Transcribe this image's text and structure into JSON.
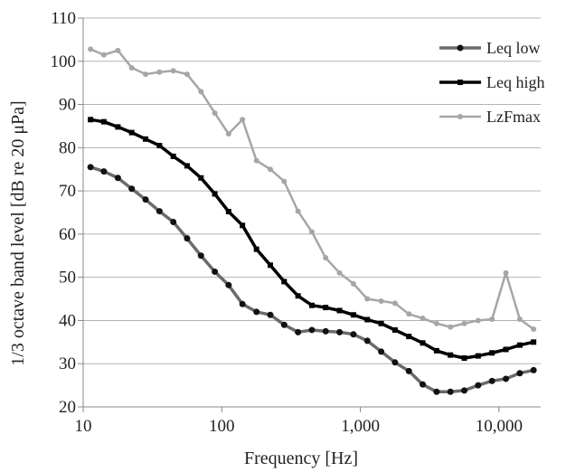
{
  "chart_data": {
    "type": "line",
    "xscale": "log",
    "xlabel": "Frequency [Hz]",
    "ylabel": "1/3 octave band level [dB re 20 μPa]",
    "xlim": [
      10,
      20000
    ],
    "ylim": [
      20,
      110
    ],
    "xticks": [
      10,
      100,
      1000,
      10000
    ],
    "xtick_labels": [
      "10",
      "100",
      "1,000",
      "10,000"
    ],
    "yticks": [
      20,
      30,
      40,
      50,
      60,
      70,
      80,
      90,
      100,
      110
    ],
    "ytick_labels": [
      "20",
      "30",
      "40",
      "50",
      "60",
      "70",
      "80",
      "90",
      "100",
      "110"
    ],
    "grid": "horizontal",
    "legend_position": "top-right",
    "x": [
      11.3,
      14.1,
      17.8,
      22.4,
      28.2,
      35.5,
      44.7,
      56.2,
      70.8,
      89.1,
      112,
      141,
      178,
      224,
      282,
      355,
      447,
      562,
      708,
      891,
      1122,
      1413,
      1778,
      2239,
      2818,
      3548,
      4467,
      5623,
      7079,
      8913,
      11220,
      14130,
      17780
    ],
    "series": [
      {
        "name": "Leq low",
        "color": "#6b6b6b",
        "marker": "circle",
        "values": [
          75.5,
          74.5,
          73,
          70.5,
          68,
          65.3,
          62.8,
          59,
          55,
          51.3,
          48.2,
          43.8,
          42,
          41.3,
          39,
          37.3,
          37.8,
          37.5,
          37.3,
          36.8,
          35.3,
          32.8,
          30.3,
          28.3,
          25.2,
          23.5,
          23.5,
          23.8,
          25,
          26,
          26.5,
          27.8,
          28.5
        ]
      },
      {
        "name": "Leq high",
        "color": "#000000",
        "marker": "square",
        "values": [
          86.5,
          86,
          84.8,
          83.5,
          82,
          80.5,
          78,
          75.8,
          73,
          69.3,
          65.2,
          62,
          56.5,
          52.8,
          49,
          45.7,
          43.5,
          43,
          42.3,
          41.3,
          40.2,
          39.3,
          37.8,
          36.3,
          34.8,
          33,
          32,
          31.3,
          31.8,
          32.5,
          33.3,
          34.3,
          35
        ]
      },
      {
        "name": "LzFmax",
        "color": "#a6a6a6",
        "marker": "circle",
        "values": [
          102.8,
          101.5,
          102.5,
          98.5,
          97,
          97.5,
          97.8,
          97,
          93,
          88,
          83.2,
          86.5,
          77,
          75,
          72.2,
          65.3,
          60.5,
          54.5,
          51,
          48.5,
          45,
          44.5,
          44,
          41.5,
          40.5,
          39.3,
          38.5,
          39.3,
          40,
          40.3,
          51,
          40.3,
          38
        ]
      }
    ]
  }
}
